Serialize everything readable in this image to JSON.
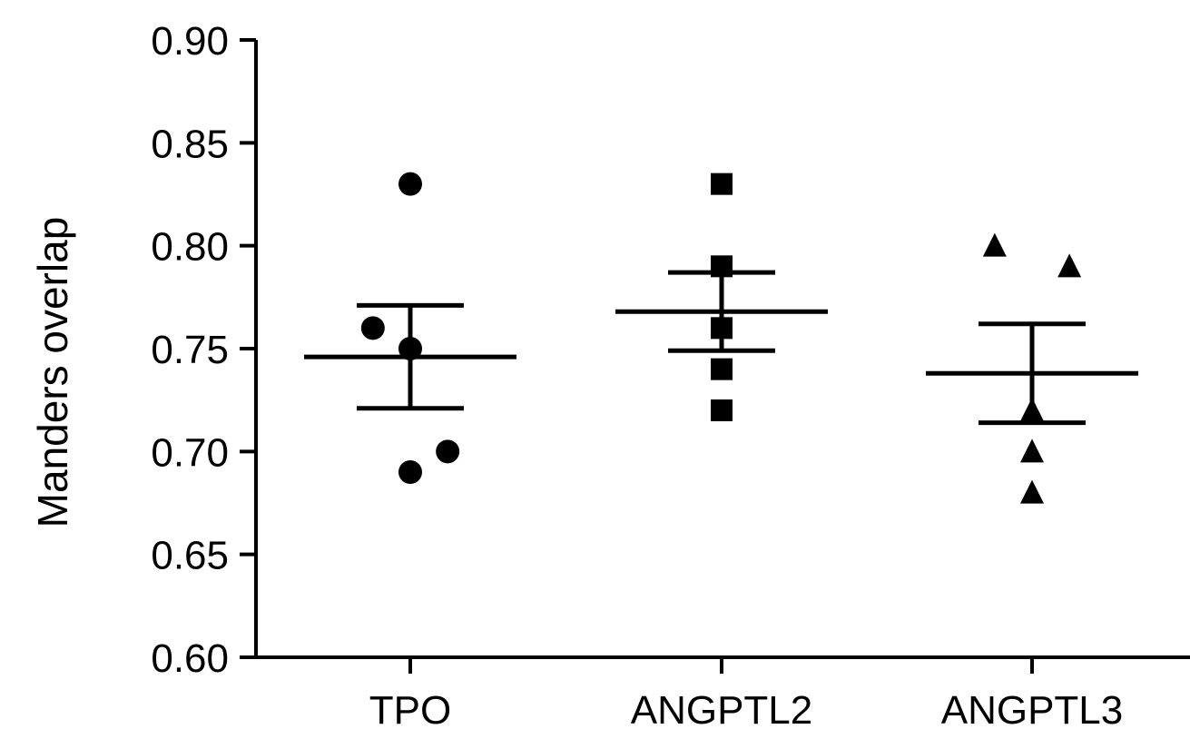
{
  "chart_data": {
    "type": "scatter",
    "title": "",
    "xlabel": "",
    "ylabel": "Manders overlap",
    "ylim": [
      0.6,
      0.9
    ],
    "yticks": [
      "0.60",
      "0.65",
      "0.70",
      "0.75",
      "0.80",
      "0.85",
      "0.90"
    ],
    "categories": [
      "TPO",
      "ANGPTL2",
      "ANGPTL3"
    ],
    "color": "#000000",
    "grid": false,
    "legend": "none",
    "groups": [
      {
        "category": "TPO",
        "marker": "circle",
        "points": [
          {
            "offset": 0.0,
            "y": 0.83
          },
          {
            "offset": -0.12,
            "y": 0.76
          },
          {
            "offset": 0.0,
            "y": 0.75
          },
          {
            "offset": 0.12,
            "y": 0.7
          },
          {
            "offset": 0.0,
            "y": 0.69
          }
        ],
        "mean": 0.746,
        "sem_upper": 0.771,
        "sem_lower": 0.721
      },
      {
        "category": "ANGPTL2",
        "marker": "square",
        "points": [
          {
            "offset": 0.0,
            "y": 0.83
          },
          {
            "offset": 0.0,
            "y": 0.79
          },
          {
            "offset": 0.0,
            "y": 0.76
          },
          {
            "offset": 0.0,
            "y": 0.74
          },
          {
            "offset": 0.0,
            "y": 0.72
          }
        ],
        "mean": 0.768,
        "sem_upper": 0.787,
        "sem_lower": 0.749
      },
      {
        "category": "ANGPTL3",
        "marker": "triangle",
        "points": [
          {
            "offset": -0.12,
            "y": 0.8
          },
          {
            "offset": 0.12,
            "y": 0.79
          },
          {
            "offset": 0.0,
            "y": 0.72
          },
          {
            "offset": 0.0,
            "y": 0.7
          },
          {
            "offset": 0.0,
            "y": 0.68
          }
        ],
        "mean": 0.738,
        "sem_upper": 0.762,
        "sem_lower": 0.714
      }
    ]
  }
}
